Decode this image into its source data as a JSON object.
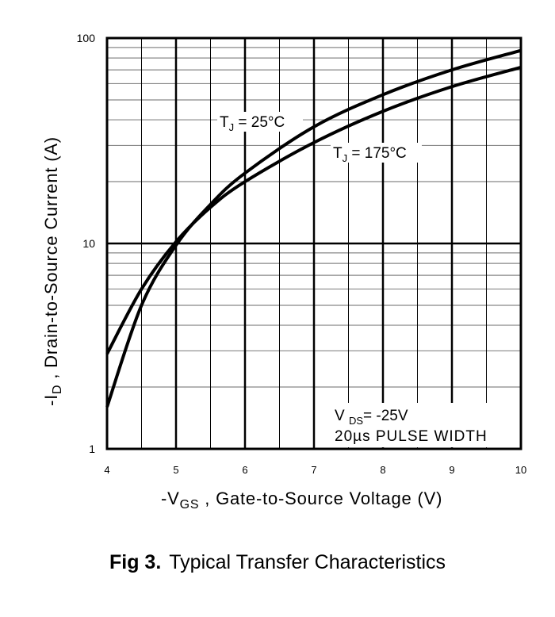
{
  "chart_data": {
    "type": "line",
    "title": "",
    "xlabel": {
      "prefix": "-V",
      "sub": "GS",
      "rest": " , Gate-to-Source Voltage (V)"
    },
    "ylabel": {
      "prefix": "-I",
      "sub": "D",
      "rest": " , Drain-to-Source Current (A)"
    },
    "xlim": [
      4,
      10
    ],
    "ylim": [
      1,
      100
    ],
    "yscale": "log",
    "grid": true,
    "x_ticks": [
      "4",
      "5",
      "6",
      "7",
      "8",
      "9",
      "10"
    ],
    "y_ticks": [
      "1",
      "10",
      "100"
    ],
    "series": [
      {
        "name": "TJ = 25°C",
        "x": [
          4,
          4.5,
          5,
          5.5,
          6,
          7,
          8,
          9,
          10
        ],
        "y": [
          1.6,
          5.0,
          9.8,
          15.5,
          22,
          37,
          53,
          70,
          87
        ]
      },
      {
        "name": "TJ = 175°C",
        "x": [
          4,
          4.5,
          5,
          5.5,
          6,
          7,
          8,
          9,
          10
        ],
        "y": [
          2.9,
          6.0,
          10.2,
          15.0,
          20,
          31,
          44,
          58,
          72
        ]
      }
    ],
    "annotations": {
      "tj25": {
        "t": "T",
        "sub": "J",
        "rest": " = 25°C"
      },
      "tj175": {
        "t": "T",
        "sub": "J",
        "rest": " = 175°C"
      },
      "vds": {
        "t": "V ",
        "sub": "DS",
        "rest": "= -25V"
      },
      "pulse": "20µs PULSE WIDTH"
    }
  },
  "caption": {
    "fig": "Fig 3.",
    "text": "Typical Transfer Characteristics"
  }
}
